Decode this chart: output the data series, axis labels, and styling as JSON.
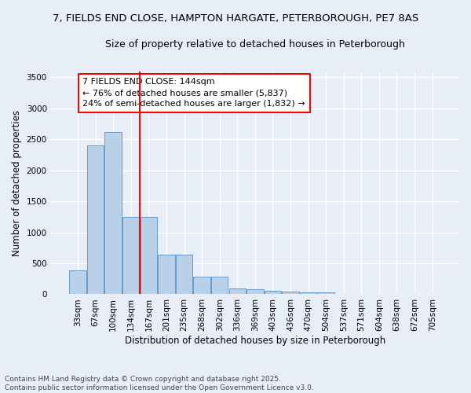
{
  "title_line1": "7, FIELDS END CLOSE, HAMPTON HARGATE, PETERBOROUGH, PE7 8AS",
  "title_line2": "Size of property relative to detached houses in Peterborough",
  "xlabel": "Distribution of detached houses by size in Peterborough",
  "ylabel": "Number of detached properties",
  "categories": [
    "33sqm",
    "67sqm",
    "100sqm",
    "134sqm",
    "167sqm",
    "201sqm",
    "235sqm",
    "268sqm",
    "302sqm",
    "336sqm",
    "369sqm",
    "403sqm",
    "436sqm",
    "470sqm",
    "504sqm",
    "537sqm",
    "571sqm",
    "604sqm",
    "638sqm",
    "672sqm",
    "705sqm"
  ],
  "values": [
    390,
    2400,
    2620,
    1250,
    1250,
    640,
    640,
    280,
    280,
    100,
    80,
    55,
    40,
    35,
    25,
    10,
    5,
    2,
    1,
    0,
    0
  ],
  "bar_color": "#b8d0e8",
  "bar_edge_color": "#6699cc",
  "vline_x_idx": 3,
  "vline_color": "red",
  "annotation_text": "7 FIELDS END CLOSE: 144sqm\n← 76% of detached houses are smaller (5,837)\n24% of semi-detached houses are larger (1,832) →",
  "annotation_box_color": "white",
  "annotation_box_edge_color": "red",
  "ylim": [
    0,
    3600
  ],
  "yticks": [
    0,
    500,
    1000,
    1500,
    2000,
    2500,
    3000,
    3500
  ],
  "background_color": "#e8eef8",
  "grid_color": "white",
  "footnote": "Contains HM Land Registry data © Crown copyright and database right 2025.\nContains public sector information licensed under the Open Government Licence v3.0.",
  "title_fontsize": 9.5,
  "subtitle_fontsize": 9,
  "label_fontsize": 8.5,
  "tick_fontsize": 7.5,
  "annot_fontsize": 8
}
